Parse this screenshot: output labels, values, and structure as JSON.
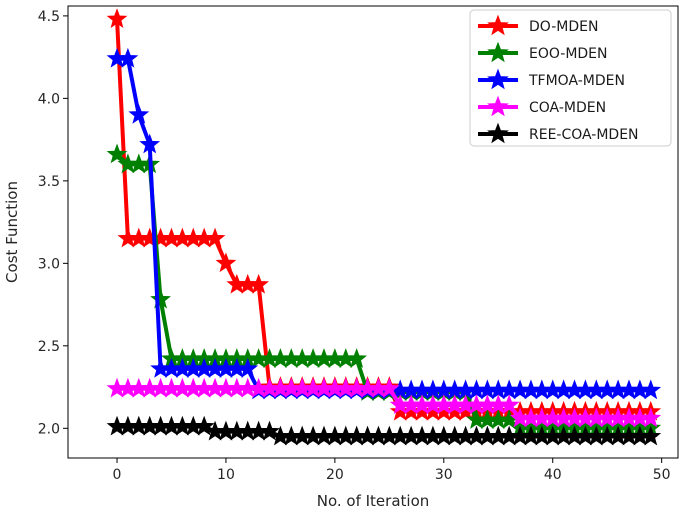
{
  "chart_data": {
    "type": "line",
    "title": "",
    "xlabel": "No. of Iteration",
    "ylabel": "Cost Function",
    "xlim": [
      -4.5,
      51.5
    ],
    "ylim": [
      1.82,
      4.56
    ],
    "xticks": [
      0,
      10,
      20,
      30,
      40,
      50
    ],
    "yticks": [
      2.0,
      2.5,
      3.0,
      3.5,
      4.0,
      4.5
    ],
    "ytick_labels": [
      "2.0",
      "2.5",
      "3.0",
      "3.5",
      "4.0",
      "4.5"
    ],
    "grid": false,
    "legend_position": "top-right",
    "marker": "star",
    "series": [
      {
        "name": "DO-MDEN",
        "color": "#ff0000",
        "values": [
          4.48,
          3.15,
          3.15,
          3.15,
          3.15,
          3.15,
          3.15,
          3.15,
          3.15,
          3.15,
          3.0,
          2.87,
          2.87,
          2.87,
          2.25,
          2.25,
          2.25,
          2.25,
          2.25,
          2.25,
          2.25,
          2.25,
          2.25,
          2.25,
          2.25,
          2.25,
          2.1,
          2.1,
          2.1,
          2.1,
          2.1,
          2.1,
          2.1,
          2.1,
          2.1,
          2.1,
          2.1,
          2.1,
          2.1,
          2.1,
          2.1,
          2.1,
          2.1,
          2.1,
          2.1,
          2.1,
          2.1,
          2.1,
          2.1,
          2.1
        ]
      },
      {
        "name": "EOO-MDEN",
        "color": "#008000",
        "values": [
          3.66,
          3.6,
          3.6,
          3.6,
          2.78,
          2.42,
          2.42,
          2.42,
          2.42,
          2.42,
          2.42,
          2.42,
          2.42,
          2.42,
          2.42,
          2.42,
          2.42,
          2.42,
          2.42,
          2.42,
          2.42,
          2.42,
          2.42,
          2.22,
          2.22,
          2.22,
          2.22,
          2.22,
          2.22,
          2.22,
          2.22,
          2.22,
          2.22,
          2.05,
          2.05,
          2.05,
          2.05,
          2.0,
          2.0,
          2.0,
          2.0,
          2.0,
          2.0,
          2.0,
          2.0,
          2.0,
          2.0,
          2.0,
          2.0,
          2.0
        ]
      },
      {
        "name": "TFMOA-MDEN",
        "color": "#0000ff",
        "values": [
          4.24,
          4.24,
          3.9,
          3.72,
          2.36,
          2.36,
          2.36,
          2.36,
          2.36,
          2.36,
          2.36,
          2.36,
          2.36,
          2.23,
          2.23,
          2.23,
          2.23,
          2.23,
          2.23,
          2.23,
          2.23,
          2.23,
          2.23,
          2.23,
          2.23,
          2.23,
          2.23,
          2.23,
          2.23,
          2.23,
          2.23,
          2.23,
          2.23,
          2.23,
          2.23,
          2.23,
          2.23,
          2.23,
          2.23,
          2.23,
          2.23,
          2.23,
          2.23,
          2.23,
          2.23,
          2.23,
          2.23,
          2.23,
          2.23,
          2.23
        ]
      },
      {
        "name": "COA-MDEN",
        "color": "#ff00ff",
        "values": [
          2.24,
          2.24,
          2.24,
          2.24,
          2.24,
          2.24,
          2.24,
          2.24,
          2.24,
          2.24,
          2.24,
          2.24,
          2.24,
          2.24,
          2.24,
          2.24,
          2.24,
          2.24,
          2.24,
          2.24,
          2.24,
          2.24,
          2.24,
          2.24,
          2.24,
          2.24,
          2.14,
          2.14,
          2.14,
          2.14,
          2.14,
          2.14,
          2.14,
          2.14,
          2.14,
          2.14,
          2.14,
          2.06,
          2.06,
          2.06,
          2.06,
          2.06,
          2.06,
          2.06,
          2.06,
          2.06,
          2.06,
          2.06,
          2.06,
          2.06
        ]
      },
      {
        "name": "REE-COA-MDEN",
        "color": "#000000",
        "values": [
          2.01,
          2.01,
          2.01,
          2.01,
          2.01,
          2.01,
          2.01,
          2.01,
          2.01,
          1.98,
          1.98,
          1.98,
          1.98,
          1.98,
          1.98,
          1.95,
          1.95,
          1.95,
          1.95,
          1.95,
          1.95,
          1.95,
          1.95,
          1.95,
          1.95,
          1.95,
          1.95,
          1.95,
          1.95,
          1.95,
          1.95,
          1.95,
          1.95,
          1.95,
          1.95,
          1.95,
          1.95,
          1.95,
          1.95,
          1.95,
          1.95,
          1.95,
          1.95,
          1.95,
          1.95,
          1.95,
          1.95,
          1.95,
          1.95,
          1.95
        ]
      }
    ]
  }
}
